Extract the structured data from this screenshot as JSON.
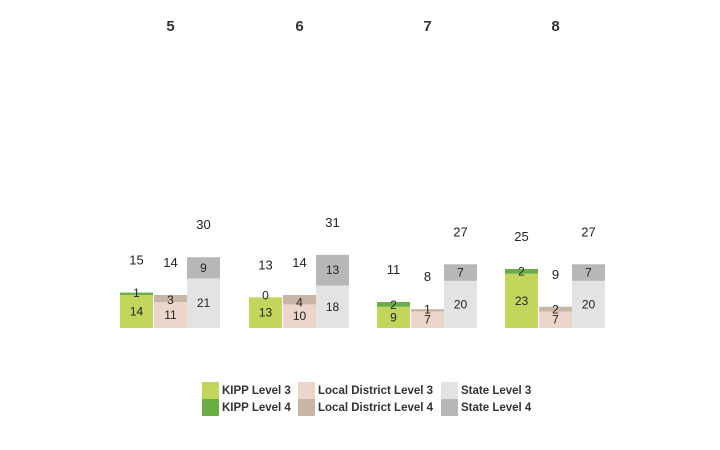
{
  "chart_data": {
    "type": "bar",
    "stacked": true,
    "categories": [
      "5",
      "6",
      "7",
      "8"
    ],
    "groups": [
      "KIPP",
      "Local District",
      "State"
    ],
    "series": [
      {
        "name": "KIPP Level 3",
        "group": "KIPP",
        "level": 3,
        "color": "#c3d65c",
        "values": [
          14,
          13,
          9,
          23
        ]
      },
      {
        "name": "KIPP Level 4",
        "group": "KIPP",
        "level": 4,
        "color": "#6aad45",
        "values": [
          1,
          0,
          2,
          2
        ]
      },
      {
        "name": "Local District Level 3",
        "group": "Local District",
        "level": 3,
        "color": "#ecd5ca",
        "values": [
          11,
          10,
          7,
          7
        ]
      },
      {
        "name": "Local District Level 4",
        "group": "Local District",
        "level": 4,
        "color": "#c9b5a5",
        "values": [
          3,
          4,
          1,
          2
        ]
      },
      {
        "name": "State Level 3",
        "group": "State",
        "level": 3,
        "color": "#e3e3e3",
        "values": [
          21,
          18,
          20,
          20
        ]
      },
      {
        "name": "State Level 4",
        "group": "State",
        "level": 4,
        "color": "#b7b7b7",
        "values": [
          9,
          13,
          7,
          7
        ]
      }
    ],
    "totals": {
      "KIPP": [
        15,
        13,
        11,
        25
      ],
      "Local District": [
        14,
        14,
        8,
        9
      ],
      "State": [
        30,
        31,
        27,
        27
      ]
    },
    "legend_position": "bottom",
    "grid": false,
    "title": "",
    "xlabel": "",
    "ylabel": ""
  },
  "legend": {
    "items": [
      {
        "label": "KIPP Level 3",
        "color": "#c3d65c"
      },
      {
        "label": "Local District Level 3",
        "color": "#ecd5ca"
      },
      {
        "label": "State Level 3",
        "color": "#e3e3e3"
      },
      {
        "label": "KIPP Level 4",
        "color": "#6aad45"
      },
      {
        "label": "Local District Level 4",
        "color": "#c9b5a5"
      },
      {
        "label": "State Level 4",
        "color": "#b7b7b7"
      }
    ]
  }
}
